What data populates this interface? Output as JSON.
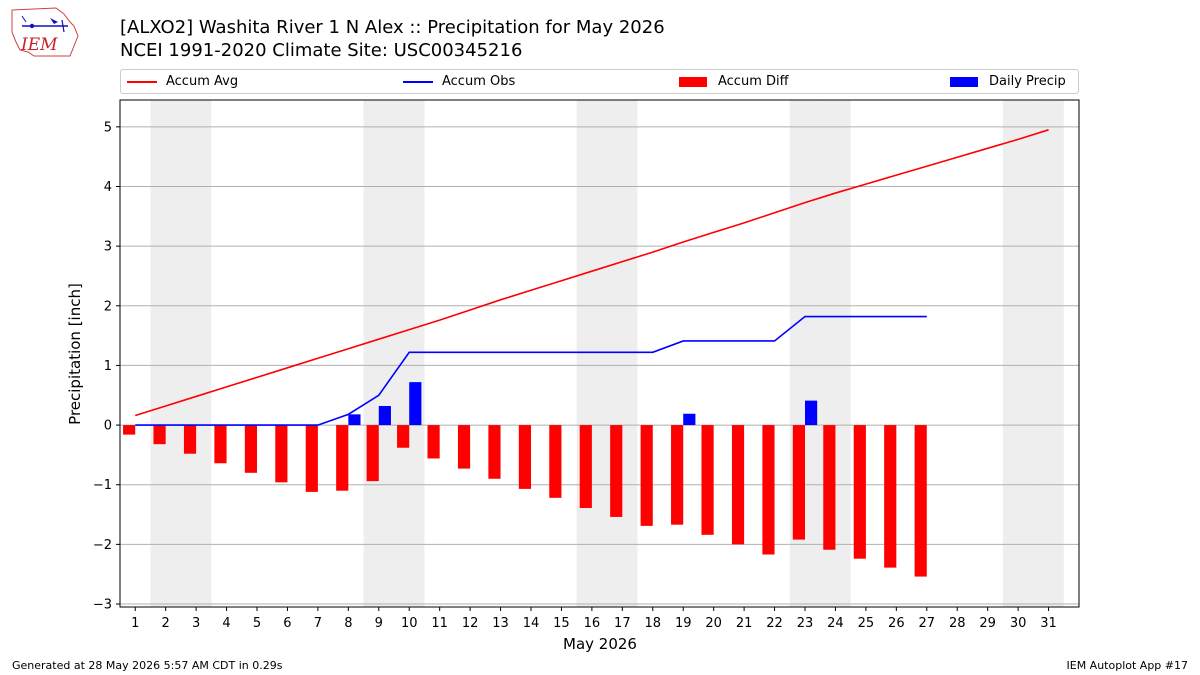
{
  "header": {
    "title_line1": "[ALXO2] Washita River 1 N Alex :: Precipitation for May 2026",
    "title_line2": "NCEI 1991-2020 Climate Site: USC00345216",
    "logo_text": "IEM"
  },
  "footer": {
    "generated": "Generated at 28 May 2026 5:57 AM CDT in 0.29s",
    "app": "IEM Autoplot App #17"
  },
  "colors": {
    "accum_avg": "#ff0000",
    "accum_obs": "#0000ff",
    "accum_diff": "#ff0000",
    "daily_precip": "#0000ff",
    "weekend_shade": "#eeeeee",
    "grid": "#b0b0b0"
  },
  "legend": [
    {
      "label": "Accum Avg",
      "kind": "line",
      "color": "#ff0000"
    },
    {
      "label": "Accum Obs",
      "kind": "line",
      "color": "#0000ff"
    },
    {
      "label": "Accum Diff",
      "kind": "patch",
      "color": "#ff0000"
    },
    {
      "label": "Daily Precip",
      "kind": "patch",
      "color": "#0000ff"
    }
  ],
  "chart_data": {
    "type": "bar",
    "xlabel": "May 2026",
    "ylabel": "Precipitation [inch]",
    "ylim": [
      -3.05,
      5.45
    ],
    "yticks": [
      -3,
      -2,
      -1,
      0,
      1,
      2,
      3,
      4,
      5
    ],
    "ytick_labels": [
      "−3",
      "−2",
      "−1",
      "0",
      "1",
      "2",
      "3",
      "4",
      "5"
    ],
    "grid": "horizontal",
    "legend_position": "top",
    "xlim": [
      0.5,
      32.0
    ],
    "days": [
      1,
      2,
      3,
      4,
      5,
      6,
      7,
      8,
      9,
      10,
      11,
      12,
      13,
      14,
      15,
      16,
      17,
      18,
      19,
      20,
      21,
      22,
      23,
      24,
      25,
      26,
      27,
      28,
      29,
      30,
      31
    ],
    "shaded_days": [
      2,
      3,
      9,
      10,
      16,
      17,
      23,
      24,
      30,
      31
    ],
    "series": [
      {
        "name": "Accum Avg",
        "type": "line",
        "x": [
          1,
          2,
          3,
          4,
          5,
          6,
          7,
          8,
          9,
          10,
          11,
          12,
          13,
          14,
          15,
          16,
          17,
          18,
          19,
          20,
          21,
          22,
          23,
          24,
          25,
          26,
          27,
          28,
          29,
          30,
          31
        ],
        "values": [
          0.16,
          0.32,
          0.48,
          0.64,
          0.8,
          0.96,
          1.12,
          1.28,
          1.44,
          1.6,
          1.76,
          1.93,
          2.1,
          2.26,
          2.42,
          2.58,
          2.74,
          2.9,
          3.07,
          3.23,
          3.39,
          3.56,
          3.73,
          3.89,
          4.04,
          4.19,
          4.34,
          4.49,
          4.64,
          4.79,
          4.95
        ]
      },
      {
        "name": "Accum Obs",
        "type": "line",
        "x": [
          1,
          2,
          3,
          4,
          5,
          6,
          7,
          8,
          9,
          10,
          11,
          12,
          13,
          14,
          15,
          16,
          17,
          18,
          19,
          20,
          21,
          22,
          23,
          24,
          25,
          26,
          27
        ],
        "values": [
          0,
          0,
          0,
          0,
          0,
          0,
          0,
          0.18,
          0.5,
          1.22,
          1.22,
          1.22,
          1.22,
          1.22,
          1.22,
          1.22,
          1.22,
          1.22,
          1.41,
          1.41,
          1.41,
          1.41,
          1.82,
          1.82,
          1.82,
          1.82,
          1.82
        ]
      },
      {
        "name": "Accum Diff",
        "type": "bar",
        "x": [
          1,
          2,
          3,
          4,
          5,
          6,
          7,
          8,
          9,
          10,
          11,
          12,
          13,
          14,
          15,
          16,
          17,
          18,
          19,
          20,
          21,
          22,
          23,
          24,
          25,
          26,
          27
        ],
        "values": [
          -0.16,
          -0.32,
          -0.48,
          -0.64,
          -0.8,
          -0.96,
          -1.12,
          -1.1,
          -0.94,
          -0.38,
          -0.56,
          -0.73,
          -0.9,
          -1.07,
          -1.22,
          -1.39,
          -1.54,
          -1.69,
          -1.67,
          -1.84,
          -2.0,
          -2.17,
          -1.92,
          -2.09,
          -2.24,
          -2.39,
          -2.54
        ]
      },
      {
        "name": "Daily Precip",
        "type": "bar",
        "x": [
          8,
          9,
          10,
          19,
          23
        ],
        "values": [
          0.18,
          0.32,
          0.72,
          0.19,
          0.41
        ]
      }
    ]
  }
}
